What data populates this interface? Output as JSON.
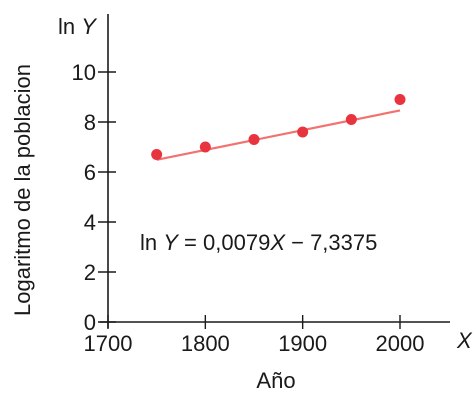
{
  "chart_data": {
    "type": "scatter",
    "ylabel": "Logaritmo de la poblacion",
    "xlabel": "Año",
    "x_axis_symbol": "X",
    "y_axis_symbol_prefix": "ln ",
    "y_axis_symbol_var": "Y",
    "xlim": [
      1700,
      2030
    ],
    "ylim": [
      0,
      11
    ],
    "x_ticks": [
      1700,
      1800,
      1900,
      2000
    ],
    "y_ticks": [
      0,
      2,
      4,
      6,
      8,
      10
    ],
    "grid": false,
    "series": [
      {
        "x": [
          1750,
          1800,
          1850,
          1900,
          1950,
          2000
        ],
        "y": [
          6.7,
          7.0,
          7.3,
          7.6,
          8.1,
          8.9
        ]
      }
    ],
    "fit_line": {
      "slope": 0.0079,
      "intercept": -7.3375,
      "x_range": [
        1750,
        2000
      ]
    },
    "annotation": {
      "prefix": "ln ",
      "var_y": "Y",
      "middle": " = 0,0079",
      "var_x": "X",
      "suffix": " − 7,3375"
    },
    "colors": {
      "points": "#e8343f",
      "fit_line": "#f2726f",
      "axis": "#1a1a1a"
    }
  }
}
